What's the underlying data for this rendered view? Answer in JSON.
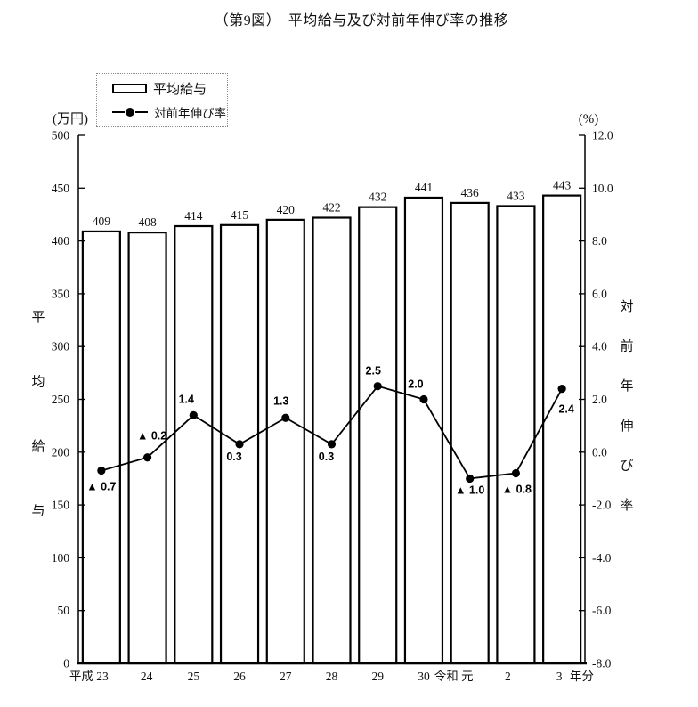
{
  "page": {
    "background": "#ffffff",
    "ink": "#000000"
  },
  "title": "（第9図）　平均給与及び対前年伸び率の推移",
  "legend": {
    "bar_label": "平均給与",
    "line_label": "対前年伸び率"
  },
  "left_axis": {
    "unit": "(万円)",
    "title": "平均給与",
    "min": 0,
    "max": 500,
    "step": 50
  },
  "right_axis": {
    "unit": "(%)",
    "title": "対前年伸び率",
    "min": -8,
    "max": 12,
    "step": 2
  },
  "x_axis": {
    "suffix": "年分"
  },
  "chart_data": {
    "type": "bar",
    "subtype": "bar+line combo, dual axis",
    "title": "（第9図）　平均給与及び対前年伸び率の推移",
    "categories": [
      "平成 23",
      "24",
      "25",
      "26",
      "27",
      "28",
      "29",
      "30",
      "令和 元",
      "2",
      "3"
    ],
    "series": [
      {
        "name": "平均給与",
        "type": "bar",
        "axis": "left",
        "unit": "万円",
        "values": [
          409,
          408,
          414,
          415,
          420,
          422,
          432,
          441,
          436,
          433,
          443
        ]
      },
      {
        "name": "対前年伸び率",
        "type": "line",
        "axis": "right",
        "unit": "%",
        "values": [
          -0.7,
          -0.2,
          1.4,
          0.3,
          1.3,
          0.3,
          2.5,
          2.0,
          -1.0,
          -0.8,
          2.4
        ],
        "point_labels": [
          "▲ 0.7",
          "▲ 0.2",
          "1.4",
          "0.3",
          "1.3",
          "0.3",
          "2.5",
          "2.0",
          "▲ 1.0",
          "▲ 0.8",
          "2.4"
        ]
      }
    ],
    "xlabel": "年分",
    "left_ylabel": "平均給与 (万円)",
    "right_ylabel": "対前年伸び率 (%)",
    "left_ylim": [
      0,
      500
    ],
    "right_ylim": [
      -8.0,
      12.0
    ],
    "grid": false,
    "legend_position": "top-left",
    "bar_fill": "#ffffff",
    "bar_stroke": "#000000",
    "line_color": "#000000"
  }
}
